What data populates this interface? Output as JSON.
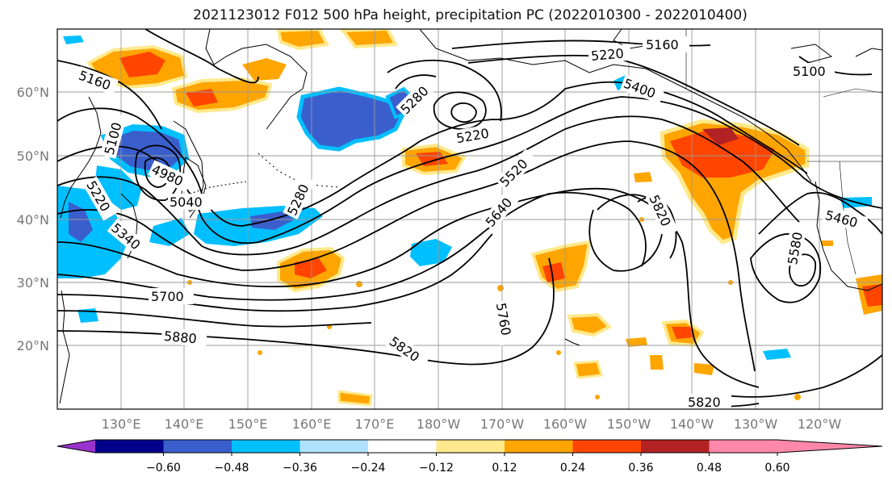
{
  "title": "2021123012 F012 500 hPa height, precipitation PC (2022010300 - 2022010400)",
  "lat_labels": [
    "60°N",
    "50°N",
    "40°N",
    "30°N",
    "20°N"
  ],
  "lon_labels": [
    "130°E",
    "140°E",
    "150°E",
    "160°E",
    "170°E",
    "180°W",
    "170°W",
    "160°W",
    "150°W",
    "140°W",
    "130°W",
    "120°W"
  ],
  "contour_labels": [
    "5160",
    "5220",
    "5160",
    "5100",
    "5400",
    "5280",
    "5220",
    "5100",
    "4980",
    "5040",
    "5220",
    "5340",
    "5280",
    "5520",
    "5640",
    "5820",
    "5460",
    "5580",
    "5700",
    "5760",
    "5880",
    "5820",
    "5820"
  ],
  "colorbar": {
    "ticks": [
      "−0.60",
      "−0.48",
      "−0.36",
      "−0.24",
      "−0.12",
      "0.12",
      "0.24",
      "0.36",
      "0.48",
      "0.60"
    ],
    "colors": [
      "#9932cc",
      "#00008b",
      "#3a5fcd",
      "#00bfff",
      "#b0e2ff",
      "#ffffff",
      "#ffe98c",
      "#ffa500",
      "#ff4500",
      "#b22222",
      "#ff88aa"
    ]
  }
}
